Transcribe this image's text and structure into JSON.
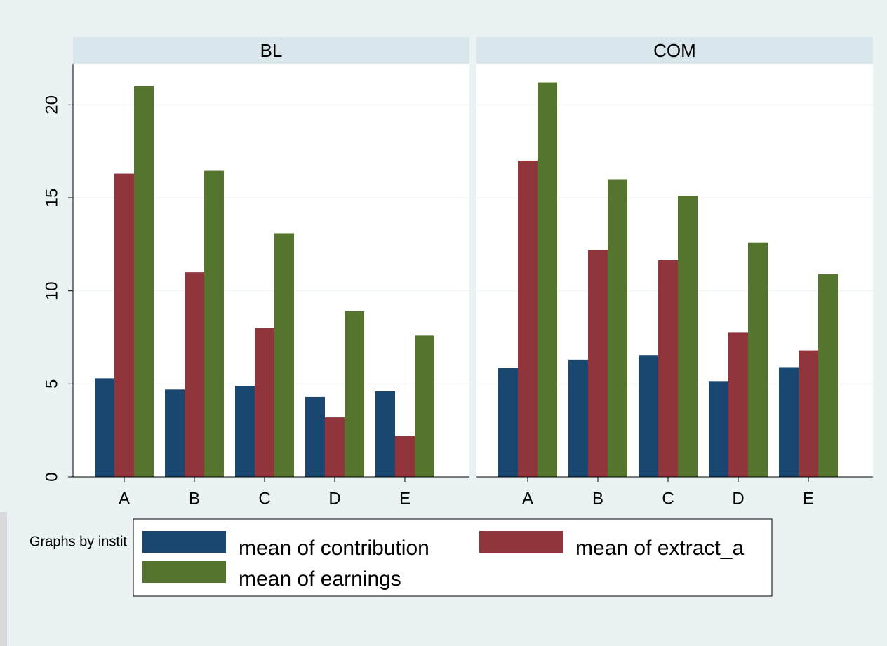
{
  "chart_data": {
    "type": "bar",
    "categories": [
      "A",
      "B",
      "C",
      "D",
      "E"
    ],
    "series": [
      {
        "name": "mean of contribution",
        "color": "#1a476f"
      },
      {
        "name": "mean of extract_a",
        "color": "#90353b"
      },
      {
        "name": "mean of earnings",
        "color": "#55752f"
      }
    ],
    "panels": [
      {
        "title": "BL",
        "series": [
          {
            "values": [
              5.3,
              4.7,
              4.9,
              4.3,
              4.6
            ]
          },
          {
            "values": [
              16.3,
              11.0,
              8.0,
              3.2,
              2.2
            ]
          },
          {
            "values": [
              21.0,
              16.45,
              13.1,
              8.9,
              7.6
            ]
          }
        ]
      },
      {
        "title": "COM",
        "series": [
          {
            "values": [
              5.85,
              6.3,
              6.55,
              5.15,
              5.9
            ]
          },
          {
            "values": [
              17.0,
              12.2,
              11.65,
              7.75,
              6.8
            ]
          },
          {
            "values": [
              21.2,
              16.0,
              15.1,
              12.6,
              10.9
            ]
          }
        ]
      }
    ],
    "ylim": [
      0,
      22.2
    ],
    "yticks": [
      0,
      5,
      10,
      15,
      20
    ],
    "grid": true,
    "note": "Graphs by instit"
  }
}
